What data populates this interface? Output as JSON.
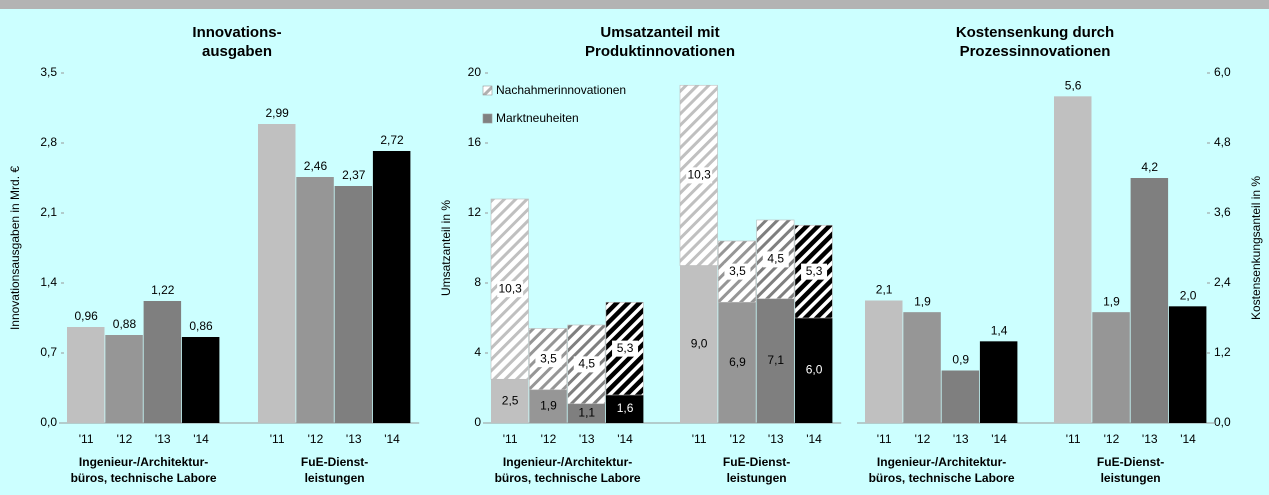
{
  "chart_data": [
    {
      "type": "bar",
      "title": [
        "Innovations-",
        "ausgaben"
      ],
      "ylabel": "Innovationsausgaben in Mrd. €",
      "categories": [
        "'11",
        "'12",
        "'13",
        "'14"
      ],
      "groups": [
        [
          "Ingenieur-/Architektur-",
          "büros, technische Labore"
        ],
        [
          "FuE-Dienst-",
          "leistungen"
        ]
      ],
      "colors": [
        "#c0c0c0",
        "#969696",
        "#7f7f7f",
        "#000000"
      ],
      "values": [
        [
          0.96,
          0.88,
          1.22,
          0.86
        ],
        [
          2.99,
          2.46,
          2.37,
          2.72
        ]
      ],
      "value_labels": [
        [
          "0,96",
          "0,88",
          "1,22",
          "0,86"
        ],
        [
          "2,99",
          "2,46",
          "2,37",
          "2,72"
        ]
      ],
      "ylim": [
        0,
        3.5
      ],
      "yticks": [
        {
          "value": 0,
          "label": "0,0"
        },
        {
          "value": 0.7,
          "label": "0,7"
        },
        {
          "value": 1.4,
          "label": "1,4"
        },
        {
          "value": 2.1,
          "label": "2,1"
        },
        {
          "value": 2.8,
          "label": "2,8"
        },
        {
          "value": 3.5,
          "label": "3,5"
        }
      ],
      "y_axis": "left"
    },
    {
      "type": "stacked_bar",
      "title": [
        "Umsatzanteil mit",
        "Produktinnovationen"
      ],
      "ylabel": "Umsatzanteil in %",
      "categories": [
        "'11",
        "'12",
        "'13",
        "'14"
      ],
      "groups": [
        [
          "Ingenieur-/Architektur-",
          "büros, technische Labore"
        ],
        [
          "FuE-Dienst-",
          "leistungen"
        ]
      ],
      "colors": [
        "#c0c0c0",
        "#969696",
        "#7f7f7f",
        "#000000"
      ],
      "series": [
        {
          "name": "Nachahmerinnovationen",
          "color": "#b0b0b0",
          "hatched": true,
          "values": [
            [
              10.3,
              3.5,
              4.5,
              5.3
            ],
            [
              10.3,
              3.5,
              4.5,
              5.3
            ]
          ],
          "value_labels": [
            [
              "10,3",
              "3,5",
              "4,5",
              "5,3"
            ],
            [
              "10,3",
              "3,5",
              "4,5",
              "5,3"
            ]
          ]
        },
        {
          "name": "Marktneuheiten",
          "color": "#808080",
          "hatched": false,
          "values": [
            [
              2.5,
              1.9,
              1.1,
              1.6
            ],
            [
              9.0,
              6.9,
              7.1,
              6.0
            ]
          ],
          "value_labels": [
            [
              "2,5",
              "1,9",
              "1,1",
              "1,6"
            ],
            [
              "9,0",
              "6,9",
              "7,1",
              "6,0"
            ]
          ]
        }
      ],
      "legend": "upper left",
      "ylim": [
        0,
        20
      ],
      "yticks": [
        0,
        4,
        8,
        12,
        16,
        20
      ],
      "y_axis": "left"
    },
    {
      "type": "bar",
      "title": [
        "Kostensenkung durch",
        "Prozessinnovationen"
      ],
      "ylabel": "Kostensenkungsanteil in %",
      "categories": [
        "'11",
        "'12",
        "'13",
        "'14"
      ],
      "groups": [
        [
          "Ingenieur-/Architektur-",
          "büros, technische Labore"
        ],
        [
          "FuE-Dienst-",
          "leistungen"
        ]
      ],
      "colors": [
        "#c0c0c0",
        "#969696",
        "#7f7f7f",
        "#000000"
      ],
      "values": [
        [
          2.1,
          1.9,
          0.9,
          1.4
        ],
        [
          5.6,
          1.9,
          4.2,
          2.0
        ]
      ],
      "value_labels": [
        [
          "2,1",
          "1,9",
          "0,9",
          "1,4"
        ],
        [
          "5,6",
          "1,9",
          "4,2",
          "2,0"
        ]
      ],
      "ylim": [
        0,
        6
      ],
      "yticks": [
        {
          "value": 0,
          "label": "0,0"
        },
        {
          "value": 1.2,
          "label": "1,2"
        },
        {
          "value": 2.4,
          "label": "2,4"
        },
        {
          "value": 3.6,
          "label": "3,6"
        },
        {
          "value": 4.8,
          "label": "4,8"
        },
        {
          "value": 6,
          "label": "6,0"
        }
      ],
      "y_axis": "right"
    }
  ]
}
